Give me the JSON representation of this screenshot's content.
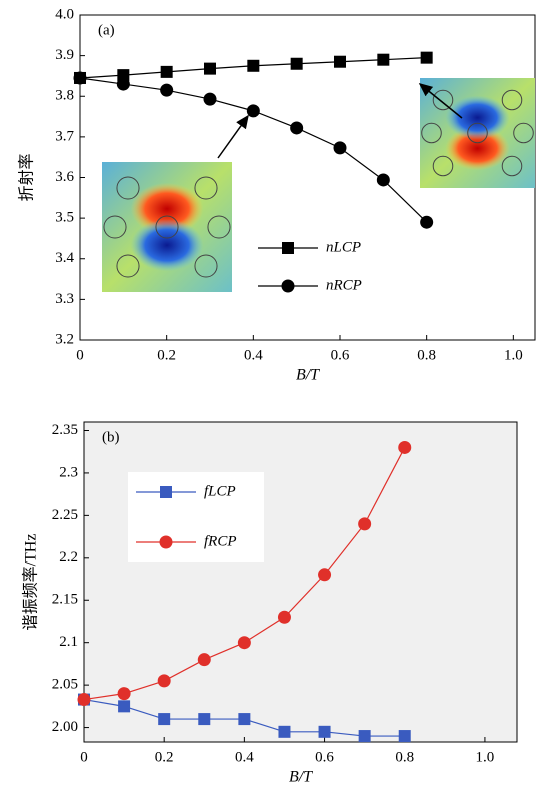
{
  "chart_data": [
    {
      "type": "line",
      "panel_label": "(a)",
      "x_label": "B/T",
      "y_label": "折射率",
      "x": [
        0,
        0.1,
        0.2,
        0.3,
        0.4,
        0.5,
        0.6,
        0.7,
        0.8
      ],
      "series": [
        {
          "name": "nLCP",
          "color": "#000000",
          "marker": "square",
          "values": [
            3.845,
            3.852,
            3.86,
            3.868,
            3.875,
            3.88,
            3.885,
            3.89,
            3.895
          ]
        },
        {
          "name": "nRCP",
          "color": "#000000",
          "marker": "circle",
          "values": [
            3.845,
            3.83,
            3.815,
            3.793,
            3.764,
            3.722,
            3.673,
            3.594,
            3.49
          ]
        }
      ],
      "xlim": [
        0,
        1.05
      ],
      "xticks": [
        0,
        0.2,
        0.4,
        0.6,
        0.8,
        {
          "value": 1,
          "label": "1.0"
        }
      ],
      "ylim": [
        3.2,
        4.0
      ],
      "yticks": [
        {
          "value": 3.2,
          "label": "3.2"
        },
        {
          "value": 3.3,
          "label": "3.3"
        },
        {
          "value": 3.4,
          "label": "3.4"
        },
        {
          "value": 3.5,
          "label": "3.5"
        },
        {
          "value": 3.6,
          "label": "3.6"
        },
        {
          "value": 3.7,
          "label": "3.7"
        },
        {
          "value": 3.8,
          "label": "3.8"
        },
        {
          "value": 3.9,
          "label": "3.9"
        },
        {
          "value": 4,
          "label": "4.0"
        }
      ],
      "background": "#ffffff"
    },
    {
      "type": "line",
      "panel_label": "(b)",
      "x_label": "B/T",
      "y_label": "谐振频率/THz",
      "x": [
        0,
        0.1,
        0.2,
        0.3,
        0.4,
        0.5,
        0.6,
        0.7,
        0.8
      ],
      "series": [
        {
          "name": "fLCP",
          "color": "#3a5bbf",
          "marker": "square",
          "values": [
            2.033,
            2.025,
            2.01,
            2.01,
            2.01,
            1.995,
            1.995,
            1.99,
            1.99
          ]
        },
        {
          "name": "fRCP",
          "color": "#e0302a",
          "marker": "circle",
          "values": [
            2.033,
            2.04,
            2.055,
            2.08,
            2.1,
            2.13,
            2.18,
            2.24,
            2.33
          ]
        }
      ],
      "xlim": [
        0,
        1.08
      ],
      "xticks": [
        0,
        0.2,
        0.4,
        0.6,
        0.8,
        {
          "value": 1,
          "label": "1.0"
        }
      ],
      "ylim": [
        1.983,
        2.36
      ],
      "yticks": [
        {
          "value": 2,
          "label": "2.00"
        },
        {
          "value": 2.05,
          "label": "2.05"
        },
        2.1,
        2.15,
        2.2,
        2.25,
        2.3,
        2.35
      ],
      "background": "#f0f0f0"
    }
  ]
}
